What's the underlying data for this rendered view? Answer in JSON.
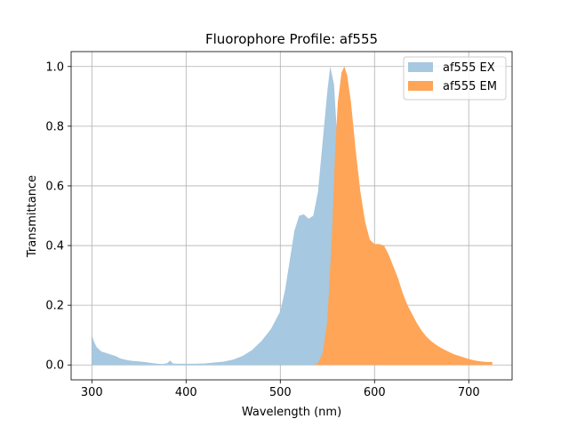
{
  "chart_data": {
    "type": "area",
    "title": "Fluorophore Profile: af555",
    "xlabel": "Wavelength (nm)",
    "ylabel": "Transmittance",
    "xlim": [
      278,
      746
    ],
    "ylim": [
      -0.05,
      1.05
    ],
    "xticks": [
      300,
      400,
      500,
      600,
      700
    ],
    "yticks": [
      0.0,
      0.2,
      0.4,
      0.6,
      0.8,
      1.0
    ],
    "grid": true,
    "legend_position": "top-right",
    "series": [
      {
        "name": "af555 EX",
        "color": "#a6c8e0",
        "points": [
          [
            300,
            0.1
          ],
          [
            302,
            0.08
          ],
          [
            305,
            0.06
          ],
          [
            310,
            0.045
          ],
          [
            315,
            0.04
          ],
          [
            320,
            0.035
          ],
          [
            325,
            0.03
          ],
          [
            330,
            0.022
          ],
          [
            335,
            0.018
          ],
          [
            340,
            0.015
          ],
          [
            345,
            0.013
          ],
          [
            350,
            0.012
          ],
          [
            355,
            0.01
          ],
          [
            360,
            0.008
          ],
          [
            365,
            0.006
          ],
          [
            370,
            0.004
          ],
          [
            375,
            0.003
          ],
          [
            380,
            0.006
          ],
          [
            383,
            0.015
          ],
          [
            386,
            0.005
          ],
          [
            390,
            0.004
          ],
          [
            400,
            0.004
          ],
          [
            410,
            0.004
          ],
          [
            420,
            0.005
          ],
          [
            430,
            0.008
          ],
          [
            440,
            0.011
          ],
          [
            450,
            0.018
          ],
          [
            460,
            0.03
          ],
          [
            470,
            0.05
          ],
          [
            480,
            0.08
          ],
          [
            490,
            0.12
          ],
          [
            500,
            0.18
          ],
          [
            505,
            0.25
          ],
          [
            510,
            0.35
          ],
          [
            515,
            0.45
          ],
          [
            520,
            0.5
          ],
          [
            525,
            0.505
          ],
          [
            530,
            0.49
          ],
          [
            535,
            0.5
          ],
          [
            540,
            0.58
          ],
          [
            545,
            0.75
          ],
          [
            550,
            0.92
          ],
          [
            553,
            1.0
          ],
          [
            557,
            0.94
          ],
          [
            560,
            0.78
          ],
          [
            563,
            0.55
          ],
          [
            566,
            0.35
          ],
          [
            570,
            0.2
          ],
          [
            575,
            0.13
          ],
          [
            580,
            0.085
          ],
          [
            585,
            0.055
          ],
          [
            590,
            0.035
          ],
          [
            595,
            0.022
          ],
          [
            600,
            0.013
          ],
          [
            605,
            0.008
          ],
          [
            610,
            0.004
          ],
          [
            615,
            0.0
          ]
        ]
      },
      {
        "name": "af555 EM",
        "color": "#ffa557",
        "points": [
          [
            535,
            0.0
          ],
          [
            540,
            0.005
          ],
          [
            545,
            0.04
          ],
          [
            550,
            0.15
          ],
          [
            555,
            0.45
          ],
          [
            558,
            0.7
          ],
          [
            561,
            0.88
          ],
          [
            565,
            0.98
          ],
          [
            568,
            1.0
          ],
          [
            571,
            0.97
          ],
          [
            575,
            0.88
          ],
          [
            580,
            0.72
          ],
          [
            585,
            0.58
          ],
          [
            590,
            0.48
          ],
          [
            595,
            0.42
          ],
          [
            600,
            0.405
          ],
          [
            605,
            0.405
          ],
          [
            610,
            0.4
          ],
          [
            615,
            0.37
          ],
          [
            620,
            0.33
          ],
          [
            625,
            0.29
          ],
          [
            630,
            0.24
          ],
          [
            635,
            0.2
          ],
          [
            640,
            0.17
          ],
          [
            645,
            0.14
          ],
          [
            650,
            0.115
          ],
          [
            655,
            0.095
          ],
          [
            660,
            0.08
          ],
          [
            665,
            0.068
          ],
          [
            670,
            0.058
          ],
          [
            675,
            0.05
          ],
          [
            680,
            0.042
          ],
          [
            685,
            0.035
          ],
          [
            690,
            0.03
          ],
          [
            695,
            0.025
          ],
          [
            700,
            0.02
          ],
          [
            705,
            0.016
          ],
          [
            710,
            0.013
          ],
          [
            715,
            0.011
          ],
          [
            720,
            0.01
          ],
          [
            725,
            0.01
          ]
        ]
      }
    ]
  }
}
